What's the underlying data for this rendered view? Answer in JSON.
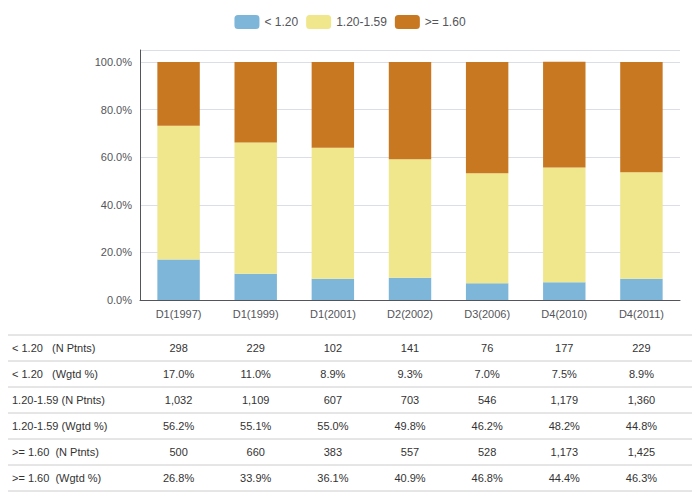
{
  "chart_data": {
    "type": "bar",
    "stacked": true,
    "categories": [
      "D1(1997)",
      "D1(1999)",
      "D1(2001)",
      "D2(2002)",
      "D3(2006)",
      "D4(2010)",
      "D4(2011)"
    ],
    "series": [
      {
        "name": "< 1.20",
        "color": "#7eb6d9",
        "values": [
          17.0,
          11.0,
          8.9,
          9.3,
          7.0,
          7.5,
          8.9
        ]
      },
      {
        "name": "1.20-1.59",
        "color": "#f0e68c",
        "values": [
          56.2,
          55.1,
          55.0,
          49.8,
          46.2,
          48.2,
          44.8
        ]
      },
      {
        "name": ">= 1.60",
        "color": "#c87820",
        "values": [
          26.8,
          33.9,
          36.1,
          40.9,
          46.8,
          44.4,
          46.3
        ]
      }
    ],
    "ylim": [
      0,
      105
    ],
    "yticks": [
      {
        "value": 0,
        "label": "0.0%"
      },
      {
        "value": 20,
        "label": "20.0%"
      },
      {
        "value": 40,
        "label": "40.0%"
      },
      {
        "value": 60,
        "label": "60.0%"
      },
      {
        "value": 80,
        "label": "80.0%"
      },
      {
        "value": 100,
        "label": "100.0%"
      }
    ],
    "grid": true,
    "legend": "top",
    "table_rows": [
      [
        "< 1.20   (N Ptnts)",
        "298",
        "229",
        "102",
        "141",
        "76",
        "177",
        "229"
      ],
      [
        "< 1.20   (Wgtd %)",
        "17.0%",
        "11.0%",
        "8.9%",
        "9.3%",
        "7.0%",
        "7.5%",
        "8.9%"
      ],
      [
        "1.20-1.59 (N Ptnts)",
        "1,032",
        "1,109",
        "607",
        "703",
        "546",
        "1,179",
        "1,360"
      ],
      [
        "1.20-1.59 (Wgtd %)",
        "56.2%",
        "55.1%",
        "55.0%",
        "49.8%",
        "46.2%",
        "48.2%",
        "44.8%"
      ],
      [
        ">= 1.60  (N Ptnts)",
        "500",
        "660",
        "383",
        "557",
        "528",
        "1,173",
        "1,425"
      ],
      [
        ">= 1.60  (Wgtd %)",
        "26.8%",
        "33.9%",
        "36.1%",
        "40.9%",
        "46.8%",
        "44.4%",
        "46.3%"
      ]
    ]
  }
}
